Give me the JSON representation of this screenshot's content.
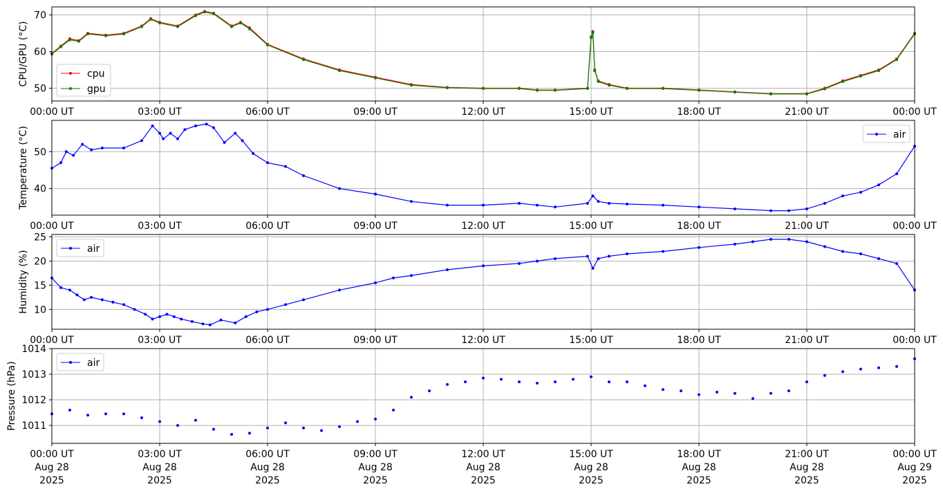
{
  "chart_data": [
    {
      "type": "line",
      "ylabel": "CPU/GPU (°C)",
      "ylim": [
        46.5,
        72.2
      ],
      "yticks": [
        50,
        60,
        70
      ],
      "xlim": [
        0,
        24
      ],
      "xticks": [
        0,
        3,
        6,
        9,
        12,
        15,
        18,
        21,
        24
      ],
      "xtick_labels": [
        "00:00 UT",
        "03:00 UT",
        "06:00 UT",
        "09:00 UT",
        "12:00 UT",
        "15:00 UT",
        "18:00 UT",
        "21:00 UT",
        "00:00 UT"
      ],
      "grid": true,
      "legend": "center-left",
      "series": [
        {
          "name": "cpu",
          "color": "#ff0000",
          "x": [
            0,
            0.25,
            0.5,
            0.75,
            1,
            1.5,
            2,
            2.5,
            2.75,
            3,
            3.5,
            4,
            4.25,
            4.5,
            5,
            5.25,
            5.5,
            6,
            7,
            8,
            9,
            10,
            11,
            12,
            13,
            13.5,
            14,
            14.9,
            15.0,
            15.05,
            15.1,
            15.2,
            15.5,
            16,
            17,
            18,
            19,
            20,
            21,
            21.5,
            22,
            22.5,
            23,
            23.5,
            24
          ],
          "y": [
            59.5,
            61.5,
            63.5,
            63,
            65,
            64.5,
            65,
            67,
            69,
            68,
            67,
            70,
            71,
            70.5,
            67,
            68,
            66.5,
            62,
            58,
            55,
            53,
            51,
            50.2,
            50,
            50,
            49.5,
            49.5,
            50,
            64,
            65.5,
            55,
            52,
            51,
            50,
            50,
            49.5,
            49,
            48.5,
            48.5,
            50,
            52,
            53.5,
            55,
            58,
            65
          ]
        },
        {
          "name": "gpu",
          "color": "#008000",
          "x": [
            0,
            0.25,
            0.5,
            0.75,
            1,
            1.5,
            2,
            2.5,
            2.75,
            3,
            3.5,
            4,
            4.25,
            4.5,
            5,
            5.25,
            5.5,
            6,
            7,
            8,
            9,
            10,
            11,
            12,
            13,
            13.5,
            14,
            14.9,
            15.0,
            15.05,
            15.1,
            15.2,
            15.5,
            16,
            17,
            18,
            19,
            20,
            21,
            21.5,
            22,
            22.5,
            23,
            23.5,
            24
          ],
          "y": [
            59.3,
            61.3,
            63.2,
            62.8,
            64.8,
            64.3,
            64.8,
            66.8,
            68.8,
            67.8,
            66.8,
            69.8,
            70.8,
            70.3,
            66.8,
            67.8,
            66.2,
            61.8,
            57.8,
            54.8,
            52.8,
            50.8,
            50.1,
            49.9,
            49.9,
            49.4,
            49.4,
            49.9,
            63.8,
            65.2,
            54.8,
            51.8,
            50.8,
            49.9,
            49.9,
            49.4,
            48.9,
            48.4,
            48.4,
            49.8,
            51.8,
            53.3,
            54.8,
            57.8,
            64.8
          ]
        }
      ]
    },
    {
      "type": "line",
      "ylabel": "Temperature (°C)",
      "ylim": [
        32.8,
        58.5
      ],
      "yticks": [
        40,
        50
      ],
      "xlim": [
        0,
        24
      ],
      "xticks": [
        0,
        3,
        6,
        9,
        12,
        15,
        18,
        21,
        24
      ],
      "xtick_labels": [
        "00:00 UT",
        "03:00 UT",
        "06:00 UT",
        "09:00 UT",
        "12:00 UT",
        "15:00 UT",
        "18:00 UT",
        "21:00 UT",
        "00:00 UT"
      ],
      "grid": true,
      "legend": "top-right",
      "series": [
        {
          "name": "air",
          "color": "#0000ff",
          "x": [
            0,
            0.25,
            0.4,
            0.6,
            0.85,
            1.1,
            1.4,
            2,
            2.5,
            2.8,
            3,
            3.1,
            3.3,
            3.5,
            3.7,
            4,
            4.3,
            4.5,
            4.8,
            5.1,
            5.3,
            5.6,
            6,
            6.5,
            7,
            8,
            9,
            10,
            11,
            12,
            13,
            13.5,
            14,
            14.9,
            15.05,
            15.2,
            15.5,
            16,
            17,
            18,
            19,
            20,
            20.5,
            21,
            21.5,
            22,
            22.5,
            23,
            23.5,
            24
          ],
          "y": [
            45.5,
            47,
            50,
            49,
            52,
            50.5,
            51,
            51,
            53,
            57,
            55,
            53.5,
            55,
            53.5,
            56,
            57,
            57.5,
            56.5,
            52.5,
            55,
            53,
            49.5,
            47,
            46,
            43.5,
            40,
            38.5,
            36.5,
            35.5,
            35.5,
            36,
            35.5,
            35,
            36,
            38,
            36.5,
            36,
            35.8,
            35.5,
            35,
            34.5,
            34,
            34,
            34.5,
            36,
            38,
            39,
            41,
            44,
            51.5
          ]
        }
      ]
    },
    {
      "type": "line",
      "ylabel": "Humidity (%)",
      "ylim": [
        5.9,
        25.5
      ],
      "yticks": [
        10,
        15,
        20,
        25
      ],
      "xlim": [
        0,
        24
      ],
      "xticks": [
        0,
        3,
        6,
        9,
        12,
        15,
        18,
        21,
        24
      ],
      "xtick_labels": [
        "00:00 UT",
        "03:00 UT",
        "06:00 UT",
        "09:00 UT",
        "12:00 UT",
        "15:00 UT",
        "18:00 UT",
        "21:00 UT",
        "00:00 UT"
      ],
      "grid": true,
      "legend": "top-left",
      "series": [
        {
          "name": "air",
          "color": "#0000ff",
          "x": [
            0,
            0.25,
            0.5,
            0.7,
            0.9,
            1.1,
            1.4,
            1.7,
            2,
            2.3,
            2.6,
            2.8,
            3,
            3.2,
            3.4,
            3.6,
            3.9,
            4.2,
            4.4,
            4.7,
            5.1,
            5.4,
            5.7,
            6,
            6.5,
            7,
            8,
            9,
            9.5,
            10,
            11,
            12,
            13,
            13.5,
            14,
            14.9,
            15.05,
            15.2,
            15.5,
            16,
            17,
            18,
            19,
            19.5,
            20,
            20.5,
            21,
            21.5,
            22,
            22.5,
            23,
            23.5,
            24
          ],
          "y": [
            16.5,
            14.5,
            14,
            13,
            12,
            12.5,
            12,
            11.5,
            11,
            10,
            9,
            8,
            8.5,
            9,
            8.5,
            8,
            7.5,
            7,
            6.8,
            7.8,
            7.2,
            8.5,
            9.5,
            10,
            11,
            12,
            14,
            15.5,
            16.5,
            17,
            18.2,
            19,
            19.5,
            20,
            20.5,
            21,
            18.5,
            20.5,
            21,
            21.5,
            22,
            22.8,
            23.5,
            24,
            24.5,
            24.5,
            24,
            23,
            22,
            21.5,
            20.5,
            19.5,
            14
          ]
        }
      ]
    },
    {
      "type": "scatter",
      "ylabel": "Pressure (hPa)",
      "ylim": [
        1010.3,
        1014.0
      ],
      "yticks": [
        1011,
        1012,
        1013,
        1014
      ],
      "xlim": [
        0,
        24
      ],
      "xticks": [
        0,
        3,
        6,
        9,
        12,
        15,
        18,
        21,
        24
      ],
      "xtick_labels": [
        [
          "00:00 UT",
          "Aug 28",
          "2025"
        ],
        [
          "03:00 UT",
          "Aug 28",
          "2025"
        ],
        [
          "06:00 UT",
          "Aug 28",
          "2025"
        ],
        [
          "09:00 UT",
          "Aug 28",
          "2025"
        ],
        [
          "12:00 UT",
          "Aug 28",
          "2025"
        ],
        [
          "15:00 UT",
          "Aug 28",
          "2025"
        ],
        [
          "18:00 UT",
          "Aug 28",
          "2025"
        ],
        [
          "21:00 UT",
          "Aug 28",
          "2025"
        ],
        [
          "00:00 UT",
          "Aug 29",
          "2025"
        ]
      ],
      "grid": true,
      "legend": "top-left",
      "series": [
        {
          "name": "air",
          "color": "#0000ff",
          "x": [
            0,
            0.5,
            1,
            1.5,
            2,
            2.5,
            3,
            3.5,
            4,
            4.5,
            5,
            5.5,
            6,
            6.5,
            7,
            7.5,
            8,
            8.5,
            9,
            9.5,
            10,
            10.5,
            11,
            11.5,
            12,
            12.5,
            13,
            13.5,
            14,
            14.5,
            15,
            15.5,
            16,
            16.5,
            17,
            17.5,
            18,
            18.5,
            19,
            19.5,
            20,
            20.5,
            21,
            21.5,
            22,
            22.5,
            23,
            23.5,
            24
          ],
          "y": [
            1011.45,
            1011.6,
            1011.4,
            1011.45,
            1011.45,
            1011.3,
            1011.15,
            1011.0,
            1011.2,
            1010.85,
            1010.65,
            1010.7,
            1010.9,
            1011.1,
            1010.9,
            1010.8,
            1010.95,
            1011.15,
            1011.25,
            1011.6,
            1012.1,
            1012.35,
            1012.6,
            1012.7,
            1012.85,
            1012.8,
            1012.7,
            1012.65,
            1012.7,
            1012.8,
            1012.9,
            1012.7,
            1012.7,
            1012.55,
            1012.4,
            1012.35,
            1012.2,
            1012.3,
            1012.25,
            1012.05,
            1012.25,
            1012.35,
            1012.7,
            1012.95,
            1013.1,
            1013.2,
            1013.25,
            1013.3,
            1013.6
          ]
        }
      ]
    }
  ]
}
